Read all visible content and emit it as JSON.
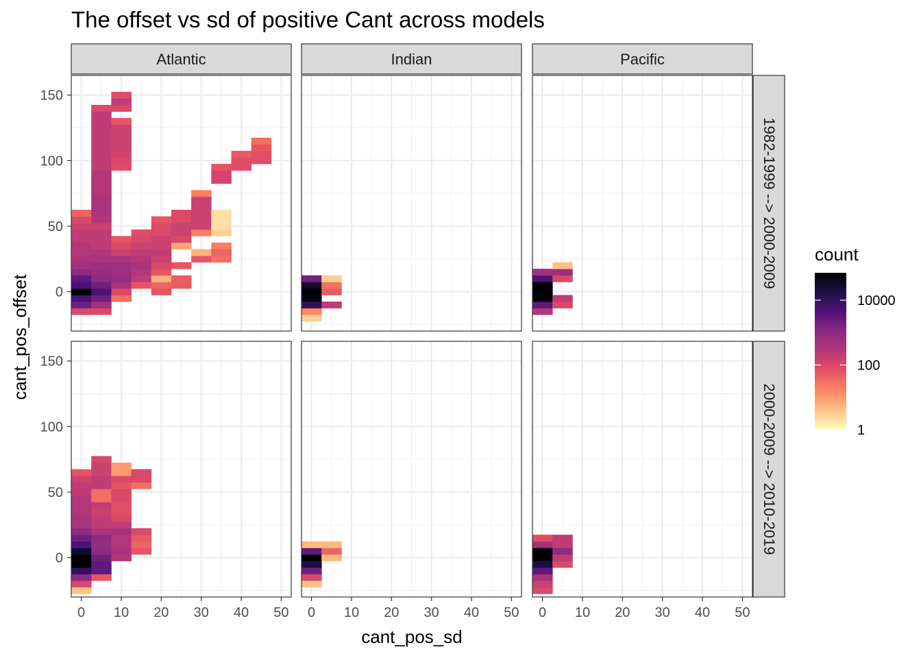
{
  "chart_data": {
    "type": "heatmap",
    "title": "The offset vs sd of positive Cant across models",
    "xlabel": "cant_pos_sd",
    "ylabel": "cant_pos_offset",
    "xlim": [
      -2.5,
      52.5
    ],
    "ylim": [
      -30,
      165
    ],
    "x_ticks": [
      0,
      10,
      20,
      30,
      40,
      50
    ],
    "y_ticks": [
      0,
      50,
      100,
      150
    ],
    "bin_width_x": 5,
    "bin_height_y": 5,
    "col_facets": [
      "Atlantic",
      "Indian",
      "Pacific"
    ],
    "row_facets": [
      "1982-1999 --> 2000-2009",
      "2000-2009 --> 2010-2019"
    ],
    "legend": {
      "title": "count",
      "scale": "log10",
      "range": [
        1,
        70000
      ],
      "breaks": [
        1,
        100,
        10000
      ],
      "break_labels": [
        "1",
        "100",
        "10000"
      ],
      "palette": [
        "#fcfdbf",
        "#fec287",
        "#fb8761",
        "#e65164",
        "#b73779",
        "#8c2981",
        "#51127c",
        "#1d1147",
        "#000004"
      ]
    },
    "facets": [
      {
        "col": "Atlantic",
        "row": "1982-1999 --> 2000-2009",
        "cells": [
          [
            0,
            -15,
            100
          ],
          [
            0,
            -10,
            2000
          ],
          [
            0,
            -5,
            5000
          ],
          [
            0,
            0,
            70000
          ],
          [
            0,
            5,
            5000
          ],
          [
            0,
            10,
            3000
          ],
          [
            0,
            15,
            1000
          ],
          [
            0,
            20,
            500
          ],
          [
            0,
            25,
            400
          ],
          [
            0,
            30,
            300
          ],
          [
            0,
            35,
            300
          ],
          [
            0,
            40,
            200
          ],
          [
            0,
            45,
            200
          ],
          [
            0,
            50,
            150
          ],
          [
            0,
            55,
            100
          ],
          [
            0,
            60,
            40
          ],
          [
            5,
            -15,
            100
          ],
          [
            5,
            -10,
            500
          ],
          [
            5,
            -5,
            2000
          ],
          [
            5,
            0,
            5000
          ],
          [
            5,
            5,
            2000
          ],
          [
            5,
            10,
            1000
          ],
          [
            5,
            15,
            800
          ],
          [
            5,
            20,
            600
          ],
          [
            5,
            25,
            400
          ],
          [
            5,
            30,
            300
          ],
          [
            5,
            35,
            200
          ],
          [
            5,
            40,
            200
          ],
          [
            5,
            45,
            200
          ],
          [
            5,
            50,
            150
          ],
          [
            5,
            55,
            300
          ],
          [
            5,
            60,
            400
          ],
          [
            5,
            65,
            400
          ],
          [
            5,
            70,
            400
          ],
          [
            5,
            75,
            300
          ],
          [
            5,
            80,
            300
          ],
          [
            5,
            85,
            300
          ],
          [
            5,
            90,
            300
          ],
          [
            5,
            95,
            200
          ],
          [
            5,
            100,
            200
          ],
          [
            5,
            105,
            200
          ],
          [
            5,
            110,
            200
          ],
          [
            5,
            115,
            200
          ],
          [
            5,
            120,
            200
          ],
          [
            5,
            125,
            200
          ],
          [
            5,
            130,
            200
          ],
          [
            5,
            135,
            200
          ],
          [
            5,
            140,
            100
          ],
          [
            10,
            -5,
            30
          ],
          [
            10,
            0,
            100
          ],
          [
            10,
            5,
            400
          ],
          [
            10,
            10,
            800
          ],
          [
            10,
            15,
            600
          ],
          [
            10,
            20,
            600
          ],
          [
            10,
            25,
            400
          ],
          [
            10,
            30,
            150
          ],
          [
            10,
            35,
            100
          ],
          [
            10,
            40,
            60
          ],
          [
            10,
            95,
            80
          ],
          [
            10,
            100,
            100
          ],
          [
            10,
            105,
            120
          ],
          [
            10,
            110,
            150
          ],
          [
            10,
            115,
            150
          ],
          [
            10,
            120,
            150
          ],
          [
            10,
            125,
            150
          ],
          [
            10,
            130,
            60
          ],
          [
            10,
            140,
            100
          ],
          [
            10,
            145,
            200
          ],
          [
            10,
            150,
            80
          ],
          [
            15,
            5,
            60
          ],
          [
            15,
            10,
            200
          ],
          [
            15,
            15,
            300
          ],
          [
            15,
            20,
            400
          ],
          [
            15,
            25,
            300
          ],
          [
            15,
            30,
            200
          ],
          [
            15,
            35,
            150
          ],
          [
            15,
            40,
            100
          ],
          [
            15,
            45,
            80
          ],
          [
            20,
            0,
            60
          ],
          [
            20,
            5,
            40
          ],
          [
            20,
            10,
            6
          ],
          [
            20,
            15,
            60
          ],
          [
            20,
            20,
            100
          ],
          [
            20,
            25,
            150
          ],
          [
            20,
            30,
            200
          ],
          [
            20,
            35,
            150
          ],
          [
            20,
            40,
            150
          ],
          [
            20,
            45,
            100
          ],
          [
            20,
            50,
            100
          ],
          [
            20,
            55,
            60
          ],
          [
            25,
            5,
            50
          ],
          [
            25,
            10,
            50
          ],
          [
            25,
            20,
            60
          ],
          [
            25,
            35,
            8
          ],
          [
            25,
            40,
            100
          ],
          [
            25,
            45,
            150
          ],
          [
            25,
            50,
            150
          ],
          [
            25,
            55,
            100
          ],
          [
            25,
            60,
            100
          ],
          [
            30,
            25,
            60
          ],
          [
            30,
            30,
            6
          ],
          [
            30,
            45,
            20
          ],
          [
            30,
            50,
            150
          ],
          [
            30,
            55,
            150
          ],
          [
            30,
            60,
            150
          ],
          [
            30,
            65,
            150
          ],
          [
            30,
            70,
            150
          ],
          [
            30,
            75,
            20
          ],
          [
            35,
            25,
            30
          ],
          [
            35,
            30,
            40
          ],
          [
            35,
            35,
            20
          ],
          [
            35,
            45,
            3
          ],
          [
            35,
            50,
            2
          ],
          [
            35,
            55,
            2
          ],
          [
            35,
            60,
            2
          ],
          [
            35,
            85,
            120
          ],
          [
            35,
            90,
            120
          ],
          [
            35,
            95,
            60
          ],
          [
            40,
            95,
            80
          ],
          [
            40,
            100,
            80
          ],
          [
            40,
            105,
            50
          ],
          [
            45,
            100,
            80
          ],
          [
            45,
            105,
            80
          ],
          [
            45,
            110,
            60
          ],
          [
            45,
            115,
            30
          ]
        ]
      },
      {
        "col": "Indian",
        "row": "1982-1999 --> 2000-2009",
        "cells": [
          [
            0,
            -20,
            3
          ],
          [
            0,
            -15,
            15
          ],
          [
            0,
            -10,
            10000
          ],
          [
            0,
            -5,
            50000
          ],
          [
            0,
            0,
            70000
          ],
          [
            0,
            5,
            30000
          ],
          [
            0,
            10,
            2000
          ],
          [
            5,
            -10,
            200
          ],
          [
            5,
            0,
            50
          ],
          [
            5,
            5,
            30
          ],
          [
            5,
            10,
            3
          ]
        ]
      },
      {
        "col": "Pacific",
        "row": "1982-1999 --> 2000-2009",
        "cells": [
          [
            0,
            -15,
            300
          ],
          [
            0,
            -10,
            3000
          ],
          [
            0,
            -5,
            60000
          ],
          [
            0,
            0,
            70000
          ],
          [
            0,
            5,
            70000
          ],
          [
            0,
            10,
            5000
          ],
          [
            0,
            15,
            500
          ],
          [
            5,
            -10,
            100
          ],
          [
            5,
            -5,
            200
          ],
          [
            5,
            10,
            100
          ],
          [
            5,
            15,
            600
          ],
          [
            5,
            20,
            4
          ]
        ]
      },
      {
        "col": "Atlantic",
        "row": "2000-2009 --> 2010-2019",
        "cells": [
          [
            0,
            -25,
            4
          ],
          [
            0,
            -20,
            100
          ],
          [
            0,
            -15,
            1000
          ],
          [
            0,
            -10,
            10000
          ],
          [
            0,
            -5,
            70000
          ],
          [
            0,
            0,
            70000
          ],
          [
            0,
            5,
            30000
          ],
          [
            0,
            10,
            5000
          ],
          [
            0,
            15,
            2000
          ],
          [
            0,
            20,
            1000
          ],
          [
            0,
            25,
            400
          ],
          [
            0,
            30,
            400
          ],
          [
            0,
            35,
            300
          ],
          [
            0,
            40,
            300
          ],
          [
            0,
            45,
            300
          ],
          [
            0,
            50,
            200
          ],
          [
            0,
            55,
            200
          ],
          [
            0,
            60,
            150
          ],
          [
            0,
            65,
            60
          ],
          [
            5,
            -15,
            60
          ],
          [
            5,
            -10,
            3000
          ],
          [
            5,
            -5,
            3000
          ],
          [
            5,
            0,
            2000
          ],
          [
            5,
            5,
            1000
          ],
          [
            5,
            10,
            800
          ],
          [
            5,
            15,
            1000
          ],
          [
            5,
            20,
            400
          ],
          [
            5,
            25,
            200
          ],
          [
            5,
            30,
            200
          ],
          [
            5,
            35,
            150
          ],
          [
            5,
            40,
            200
          ],
          [
            5,
            45,
            30
          ],
          [
            5,
            50,
            30
          ],
          [
            5,
            55,
            200
          ],
          [
            5,
            60,
            200
          ],
          [
            5,
            65,
            150
          ],
          [
            5,
            70,
            150
          ],
          [
            5,
            75,
            100
          ],
          [
            10,
            0,
            300
          ],
          [
            10,
            5,
            400
          ],
          [
            10,
            10,
            300
          ],
          [
            10,
            15,
            300
          ],
          [
            10,
            20,
            500
          ],
          [
            10,
            25,
            200
          ],
          [
            10,
            30,
            100
          ],
          [
            10,
            35,
            80
          ],
          [
            10,
            40,
            80
          ],
          [
            10,
            45,
            100
          ],
          [
            10,
            50,
            100
          ],
          [
            10,
            55,
            60
          ],
          [
            10,
            60,
            100
          ],
          [
            10,
            65,
            10
          ],
          [
            10,
            70,
            10
          ],
          [
            15,
            5,
            60
          ],
          [
            15,
            10,
            40
          ],
          [
            15,
            15,
            50
          ],
          [
            15,
            20,
            100
          ],
          [
            15,
            55,
            30
          ],
          [
            15,
            60,
            100
          ],
          [
            15,
            65,
            100
          ]
        ]
      },
      {
        "col": "Indian",
        "row": "2000-2009 --> 2010-2019",
        "cells": [
          [
            0,
            -20,
            4
          ],
          [
            0,
            -15,
            100
          ],
          [
            0,
            -10,
            2000
          ],
          [
            0,
            -5,
            20000
          ],
          [
            0,
            0,
            70000
          ],
          [
            0,
            5,
            3000
          ],
          [
            0,
            10,
            5
          ],
          [
            5,
            0,
            5
          ],
          [
            5,
            5,
            40
          ],
          [
            5,
            10,
            5
          ]
        ]
      },
      {
        "col": "Pacific",
        "row": "2000-2009 --> 2010-2019",
        "cells": [
          [
            0,
            -25,
            100
          ],
          [
            0,
            -20,
            150
          ],
          [
            0,
            -15,
            400
          ],
          [
            0,
            -10,
            3000
          ],
          [
            0,
            -5,
            20000
          ],
          [
            0,
            0,
            70000
          ],
          [
            0,
            5,
            70000
          ],
          [
            0,
            10,
            500
          ],
          [
            0,
            15,
            80
          ],
          [
            5,
            -5,
            100
          ],
          [
            5,
            0,
            200
          ],
          [
            5,
            5,
            1000
          ],
          [
            5,
            10,
            200
          ],
          [
            5,
            15,
            200
          ]
        ]
      }
    ]
  }
}
